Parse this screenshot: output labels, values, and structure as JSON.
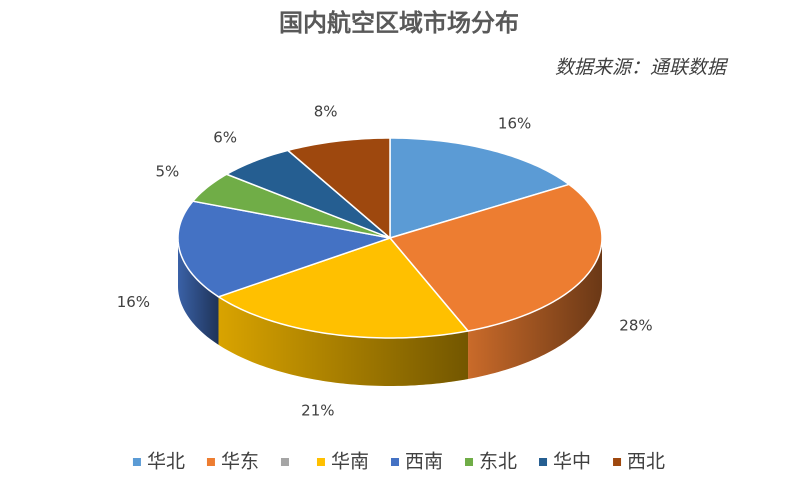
{
  "chart_data": {
    "type": "pie3d",
    "title": "国内航空区域市场分布",
    "subtitle": "数据来源：通联数据",
    "categories": [
      "华北",
      "华东",
      null,
      "华南",
      "西南",
      "东北",
      "华中",
      "西北"
    ],
    "values": [
      16,
      28,
      0,
      21,
      16,
      5,
      6,
      8
    ],
    "value_labels": [
      "16%",
      "28%",
      null,
      "21%",
      "16%",
      "5%",
      "6%",
      "8%"
    ],
    "colors": [
      "#5b9bd5",
      "#ed7d31",
      "#a5a5a5",
      "#ffc000",
      "#4472c4",
      "#70ad47",
      "#255e91",
      "#9e480e"
    ],
    "legend": "bottom"
  }
}
